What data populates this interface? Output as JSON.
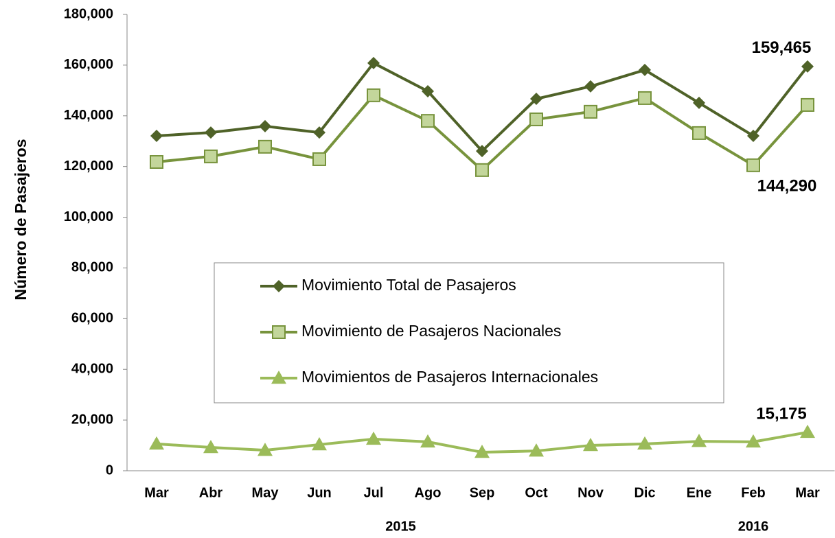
{
  "chart_data": {
    "type": "line",
    "y_label": "Número de Pasajeros",
    "categories": [
      "Mar",
      "Abr",
      "May",
      "Jun",
      "Jul",
      "Ago",
      "Sep",
      "Oct",
      "Nov",
      "Dic",
      "Ene",
      "Feb",
      "Mar"
    ],
    "x_groups": [
      {
        "label": "2015",
        "from": 0,
        "to": 9
      },
      {
        "label": "2016",
        "from": 10,
        "to": 12
      }
    ],
    "ylim": [
      0,
      180000
    ],
    "yticks": [
      {
        "value": 0,
        "label": "0"
      },
      {
        "value": 20000,
        "label": "20,000"
      },
      {
        "value": 40000,
        "label": "40,000"
      },
      {
        "value": 60000,
        "label": "60,000"
      },
      {
        "value": 80000,
        "label": "80,000"
      },
      {
        "value": 100000,
        "label": "100,000"
      },
      {
        "value": 120000,
        "label": "120,000"
      },
      {
        "value": 140000,
        "label": "140,000"
      },
      {
        "value": 160000,
        "label": "160,000"
      },
      {
        "value": 180000,
        "label": "180,000"
      }
    ],
    "grid": false,
    "series": [
      {
        "name": "Movimiento Total de Pasajeros",
        "color": "#4f6228",
        "marker": "diamond",
        "values": [
          132100,
          133400,
          135900,
          133400,
          160800,
          149700,
          126100,
          146700,
          151600,
          158100,
          145100,
          132100,
          159465
        ],
        "value_labels": [
          null,
          null,
          null,
          null,
          null,
          null,
          null,
          null,
          null,
          null,
          null,
          null,
          "159,465"
        ]
      },
      {
        "name": "Movimiento de Pasajeros Nacionales",
        "color": "#77933c",
        "marker_fill": "#c3d69b",
        "marker": "square",
        "values": [
          121800,
          124000,
          127800,
          122900,
          148100,
          138000,
          118600,
          138600,
          141600,
          147000,
          133200,
          120500,
          144290
        ],
        "value_labels": [
          null,
          null,
          null,
          null,
          null,
          null,
          null,
          null,
          null,
          null,
          null,
          null,
          "144,290"
        ]
      },
      {
        "name": "Movimientos de Pasajeros Internacionales",
        "color": "#9bbb59",
        "marker": "triangle",
        "values": [
          10600,
          9200,
          8100,
          10300,
          12500,
          11400,
          7300,
          7800,
          10000,
          10600,
          11600,
          11400,
          15175
        ],
        "value_labels": [
          null,
          null,
          null,
          null,
          null,
          null,
          null,
          null,
          null,
          null,
          null,
          null,
          "15,175"
        ]
      }
    ]
  }
}
